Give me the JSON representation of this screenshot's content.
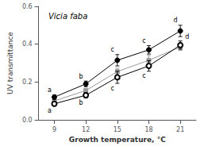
{
  "chart_data": {
    "type": "line",
    "title": "Vicia faba",
    "xlabel": "Growth temperature, °C",
    "ylabel": "UV transmittance",
    "x": [
      9,
      12,
      15,
      18,
      21
    ],
    "series": [
      {
        "color": "#000000",
        "marker": "circle",
        "values": [
          0.12,
          0.19,
          0.315,
          0.37,
          0.47
        ],
        "yerr": [
          0.012,
          0.015,
          0.03,
          0.022,
          0.03
        ],
        "annotations": [
          "a",
          "b",
          "c",
          "c",
          "d"
        ]
      },
      {
        "color": "#000000",
        "marker": "open_circle",
        "values": [
          0.085,
          0.13,
          0.225,
          0.285,
          0.395
        ],
        "yerr": [
          0.01,
          0.014,
          0.032,
          0.028,
          0.022
        ],
        "annotations": [
          "a",
          "b",
          "c",
          "c",
          "d"
        ]
      },
      {
        "color": "#999999",
        "marker": "square",
        "values": [
          0.1,
          0.155,
          0.255,
          0.315,
          0.385
        ],
        "yerr": [
          0.008,
          0.011,
          0.018,
          0.025,
          0.018
        ]
      }
    ],
    "xlim": [
      7.5,
      22.5
    ],
    "xticks": [
      9,
      12,
      15,
      18,
      21
    ],
    "ylim": [
      0,
      0.6
    ],
    "yticks": [
      {
        "value": 0,
        "label": "0.0"
      },
      0.2,
      0.4,
      0.6
    ],
    "grid": false
  }
}
